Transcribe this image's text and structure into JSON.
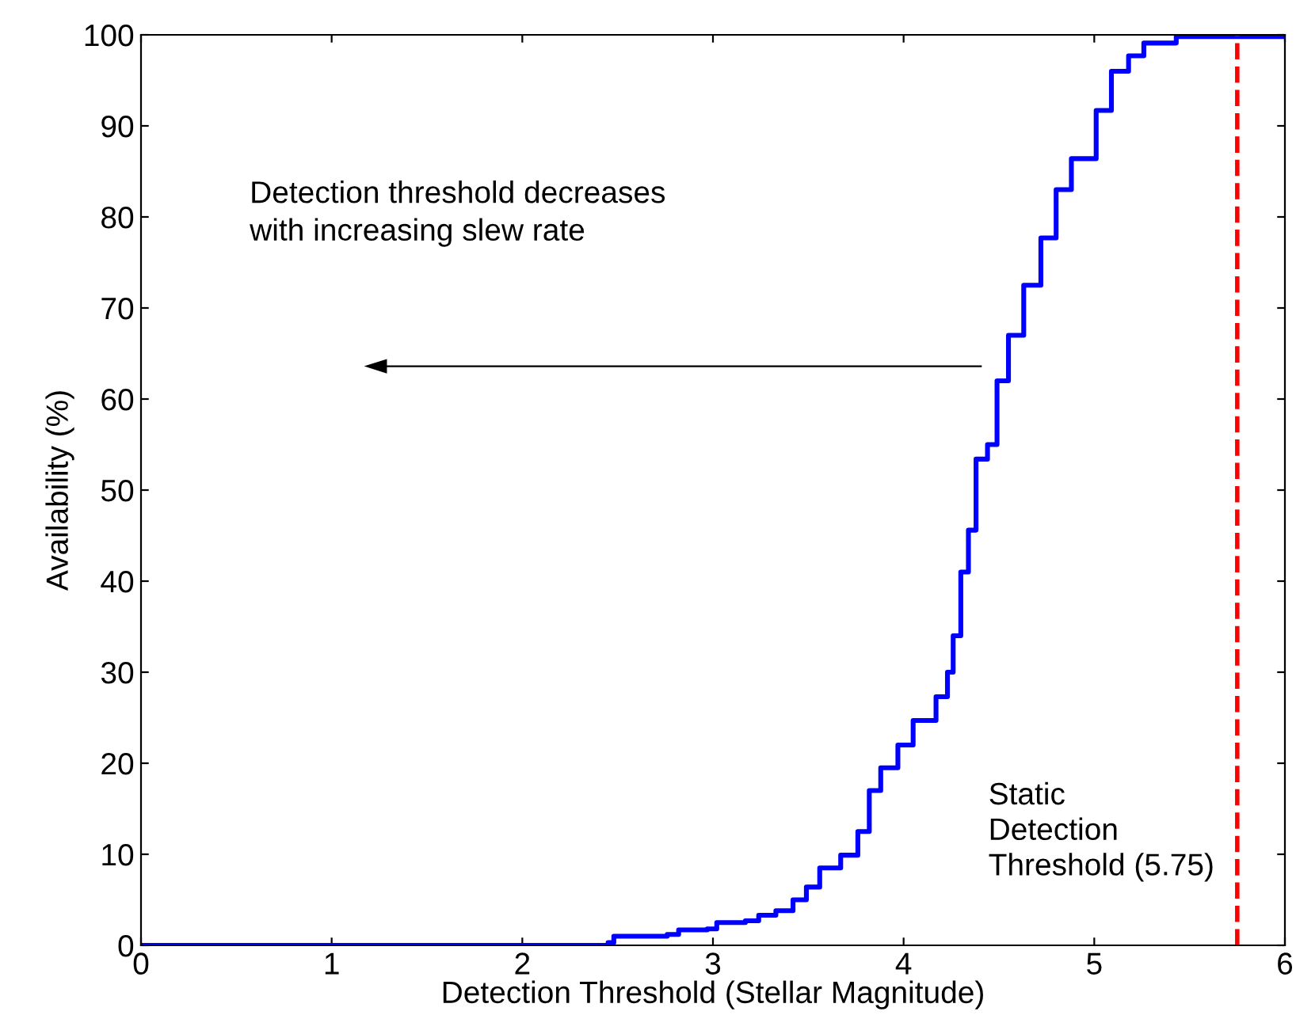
{
  "chart_data": {
    "type": "step",
    "xlabel": "Detection Threshold (Stellar Magnitude)",
    "ylabel": "Availability (%)",
    "xlim": [
      0,
      6
    ],
    "xticks": [
      0,
      1,
      2,
      3,
      4,
      5,
      6
    ],
    "ylim": [
      0,
      100
    ],
    "yticks": [
      0,
      10,
      20,
      30,
      40,
      50,
      60,
      70,
      80,
      90,
      100
    ],
    "grid": false,
    "legend": false,
    "marker": "none",
    "series": [
      {
        "color": "#0000ff",
        "line_style": "solid",
        "x": [
          0,
          2.26,
          2.45,
          2.48,
          2.76,
          2.82,
          2.97,
          3.02,
          3.17,
          3.24,
          3.33,
          3.42,
          3.49,
          3.56,
          3.67,
          3.76,
          3.82,
          3.88,
          3.97,
          4.05,
          4.17,
          4.23,
          4.26,
          4.3,
          4.34,
          4.38,
          4.44,
          4.49,
          4.55,
          4.63,
          4.72,
          4.8,
          4.88,
          5.01,
          5.09,
          5.18,
          5.26,
          5.43,
          6.0
        ],
        "values": [
          0,
          0,
          0.3,
          1,
          1.2,
          1.7,
          1.8,
          2.5,
          2.7,
          3.3,
          3.8,
          5,
          6.4,
          8.5,
          9.9,
          12.5,
          17,
          19.5,
          22,
          24.7,
          27.3,
          30,
          34,
          41,
          45.6,
          53.4,
          55,
          62,
          67,
          72.5,
          77.7,
          83,
          86.4,
          91.7,
          96,
          97.7,
          99.1,
          99.8,
          100
        ]
      }
    ],
    "ref_lines": [
      {
        "axis": "x",
        "value": 5.75,
        "label": "Static\nDetection\nThreshold (5.75)",
        "color": "#ff0000",
        "line_style": "dashed"
      }
    ],
    "annotations": [
      "Detection threshold decreases\nwith increasing slew rate"
    ]
  }
}
